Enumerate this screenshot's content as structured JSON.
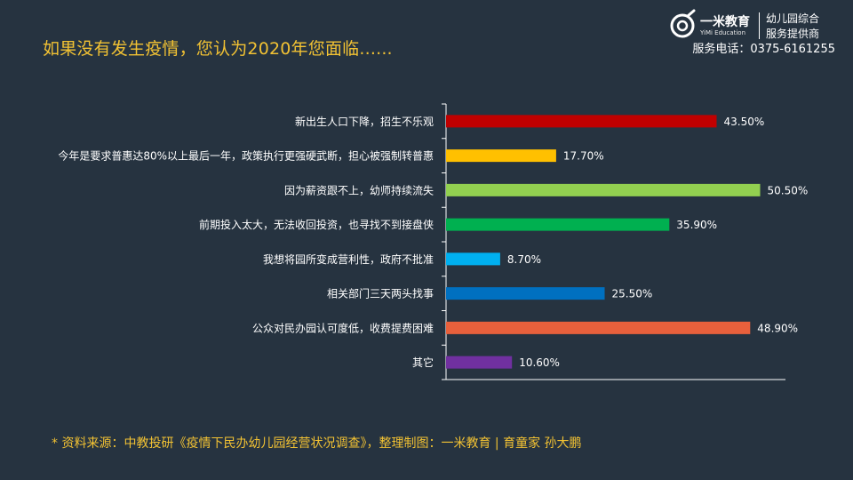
{
  "header": {
    "title": "如果没有发生疫情，您认为2020年您面临......",
    "brand_name": "一米教育",
    "brand_sub": "YiMi Education",
    "brand_tagline_1": "幼儿园综合",
    "brand_tagline_2": "服务提供商",
    "phone": "服务电话：0375-6161255"
  },
  "footer": {
    "source": "* 资料来源：中教投研《疫情下民办幼儿园经营状况调查》，整理制图：一米教育 | 育童家  孙大鹏"
  },
  "colors": {
    "background": "#263340",
    "title": "#f2c233",
    "axis": "#ffffff"
  },
  "chart_data": {
    "type": "bar",
    "orientation": "horizontal",
    "title": "",
    "xlabel": "",
    "ylabel": "",
    "xlim": [
      0,
      55
    ],
    "grid": false,
    "legend": "none",
    "categories": [
      "新出生人口下降，招生不乐观",
      "今年是要求普惠达80%以上最后一年，政策执行更强硬武断，担心被强制转普惠",
      "因为薪资跟不上，幼师持续流失",
      "前期投入太大，无法收回投资，也寻找不到接盘侠",
      "我想将园所变成营利性，政府不批准",
      "相关部门三天两头找事",
      "公众对民办园认可度低，收费提费困难",
      "其它"
    ],
    "values": [
      43.5,
      17.7,
      50.5,
      35.9,
      8.7,
      25.5,
      48.9,
      10.6
    ],
    "value_labels": [
      "43.50%",
      "17.70%",
      "50.50%",
      "35.90%",
      "8.70%",
      "25.50%",
      "48.90%",
      "10.60%"
    ],
    "bar_colors": [
      "#c00000",
      "#ffc000",
      "#92d050",
      "#00b050",
      "#00b0f0",
      "#0070c0",
      "#e8603c",
      "#7030a0"
    ]
  }
}
